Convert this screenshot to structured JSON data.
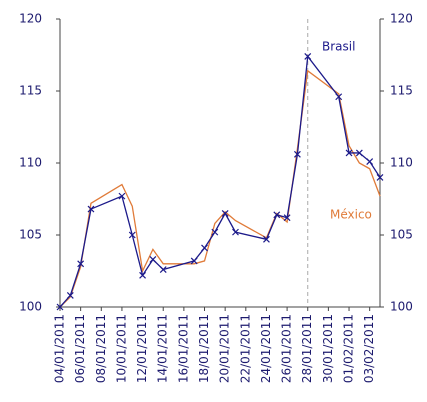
{
  "chart_data": {
    "type": "line",
    "x": [
      "04/01/2011",
      "05/01/2011",
      "06/01/2011",
      "07/01/2011",
      "10/01/2011",
      "11/01/2011",
      "12/01/2011",
      "13/01/2011",
      "14/01/2011",
      "17/01/2011",
      "18/01/2011",
      "19/01/2011",
      "20/01/2011",
      "21/01/2011",
      "24/01/2011",
      "25/01/2011",
      "26/01/2011",
      "27/01/2011",
      "28/01/2011",
      "31/01/2011",
      "01/02/2011",
      "02/02/2011",
      "03/02/2011",
      "04/02/2011"
    ],
    "series": [
      {
        "name": "Brasil",
        "color": "#1c1a8a",
        "markers": true,
        "values": [
          100.0,
          100.8,
          103.0,
          106.8,
          107.7,
          105.0,
          102.2,
          103.3,
          102.6,
          103.2,
          104.1,
          105.2,
          106.5,
          105.2,
          104.7,
          106.4,
          106.2,
          110.6,
          117.4,
          114.6,
          110.7,
          110.7,
          110.1,
          109.0
        ]
      },
      {
        "name": "México",
        "color": "#e07b39",
        "markers": false,
        "values": [
          100.0,
          100.7,
          102.8,
          107.2,
          108.5,
          107.0,
          102.5,
          104.0,
          103.0,
          103.0,
          103.2,
          105.8,
          106.6,
          106.0,
          104.8,
          106.5,
          105.9,
          111.0,
          116.4,
          114.8,
          111.2,
          110.0,
          109.6,
          107.7
        ]
      }
    ],
    "xlim": [
      "04/01/2011",
      "04/02/2011"
    ],
    "xticks": [
      "04/01/2011",
      "06/01/2011",
      "08/01/2011",
      "10/01/2011",
      "12/01/2011",
      "14/01/2011",
      "16/01/2011",
      "18/01/2011",
      "20/01/2011",
      "22/01/2011",
      "24/01/2011",
      "26/01/2011",
      "28/01/2011",
      "30/01/2011",
      "01/02/2011",
      "03/02/2011"
    ],
    "ylim": [
      100,
      120
    ],
    "yticks": [
      100,
      105,
      110,
      115,
      120
    ],
    "y2lim": [
      100,
      120
    ],
    "y2ticks": [
      100,
      105,
      110,
      115,
      120
    ],
    "vline": "28/01/2011"
  }
}
